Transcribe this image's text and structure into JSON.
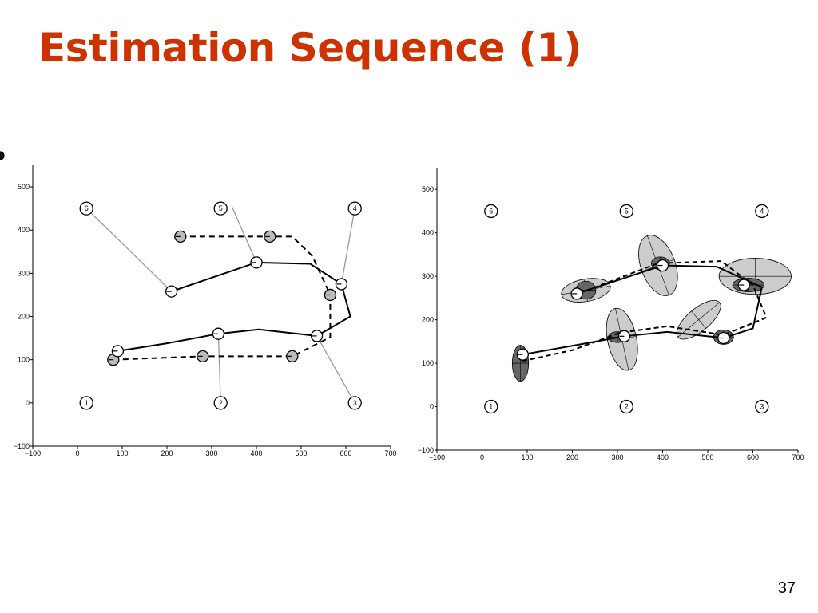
{
  "title": "Estimation Sequence (1)",
  "page_number": "37",
  "colors": {
    "title": "#cc3300",
    "pose": "#ffffff",
    "estimate": "#bbbbbb",
    "ellipse_light": "#cccccc",
    "ellipse_dark": "#666666"
  },
  "chart_data": [
    {
      "type": "scatter",
      "xlim": [
        -100,
        700
      ],
      "ylim": [
        -100,
        550
      ],
      "x_ticks": [
        -100,
        0,
        100,
        200,
        300,
        400,
        500,
        600,
        700
      ],
      "y_ticks": [
        -100,
        0,
        100,
        200,
        300,
        400,
        500
      ],
      "grid": false,
      "landmarks": [
        {
          "label": "1",
          "x": 20,
          "y": 0
        },
        {
          "label": "2",
          "x": 320,
          "y": 0
        },
        {
          "label": "3",
          "x": 620,
          "y": 0
        },
        {
          "label": "4",
          "x": 620,
          "y": 450
        },
        {
          "label": "5",
          "x": 320,
          "y": 450
        },
        {
          "label": "6",
          "x": 20,
          "y": 450
        }
      ],
      "landmark_estimates": [
        {
          "x": 12,
          "y": 462
        },
        {
          "x": 345,
          "y": 455
        },
        {
          "x": 620,
          "y": 455
        },
        {
          "x": 320,
          "y": 0
        },
        {
          "x": 620,
          "y": 0
        }
      ],
      "true_path": [
        [
          90,
          120
        ],
        [
          200,
          138
        ],
        [
          315,
          160
        ],
        [
          405,
          170
        ],
        [
          535,
          155
        ],
        [
          610,
          200
        ],
        [
          590,
          275
        ],
        [
          520,
          322
        ],
        [
          400,
          325
        ],
        [
          210,
          258
        ]
      ],
      "true_poses": [
        [
          90,
          120
        ],
        [
          315,
          160
        ],
        [
          535,
          155
        ],
        [
          590,
          275
        ],
        [
          400,
          325
        ],
        [
          210,
          258
        ]
      ],
      "odometry_path": [
        [
          80,
          100
        ],
        [
          280,
          108
        ],
        [
          480,
          108
        ],
        [
          565,
          152
        ],
        [
          565,
          250
        ],
        [
          525,
          340
        ],
        [
          480,
          385
        ],
        [
          430,
          385
        ],
        [
          230,
          385
        ]
      ],
      "odometry_poses": [
        [
          80,
          100
        ],
        [
          280,
          108
        ],
        [
          480,
          108
        ],
        [
          565,
          250
        ],
        [
          430,
          385
        ],
        [
          230,
          385
        ]
      ],
      "observations": [
        {
          "from": [
            315,
            160
          ],
          "to": [
            320,
            0
          ]
        },
        {
          "from": [
            535,
            155
          ],
          "to": [
            620,
            0
          ]
        },
        {
          "from": [
            590,
            275
          ],
          "to": [
            620,
            450
          ]
        },
        {
          "from": [
            400,
            325
          ],
          "to": [
            345,
            455
          ]
        },
        {
          "from": [
            210,
            258
          ],
          "to": [
            20,
            450
          ]
        }
      ]
    },
    {
      "type": "scatter",
      "xlim": [
        -100,
        700
      ],
      "ylim": [
        -100,
        550
      ],
      "x_ticks": [
        -100,
        0,
        100,
        200,
        300,
        400,
        500,
        600,
        700
      ],
      "y_ticks": [
        -100,
        0,
        100,
        200,
        300,
        400,
        500
      ],
      "grid": false,
      "landmarks": [
        {
          "label": "1",
          "x": 20,
          "y": 0
        },
        {
          "label": "2",
          "x": 320,
          "y": 0
        },
        {
          "label": "3",
          "x": 620,
          "y": 0
        },
        {
          "label": "4",
          "x": 620,
          "y": 450
        },
        {
          "label": "5",
          "x": 320,
          "y": 450
        },
        {
          "label": "6",
          "x": 20,
          "y": 450
        }
      ],
      "true_path": [
        [
          90,
          120
        ],
        [
          200,
          140
        ],
        [
          315,
          162
        ],
        [
          410,
          172
        ],
        [
          535,
          158
        ],
        [
          600,
          180
        ],
        [
          620,
          275
        ],
        [
          520,
          322
        ],
        [
          400,
          325
        ],
        [
          210,
          260
        ]
      ],
      "estimated_path": [
        [
          90,
          105
        ],
        [
          200,
          130
        ],
        [
          305,
          170
        ],
        [
          410,
          185
        ],
        [
          535,
          165
        ],
        [
          630,
          205
        ],
        [
          600,
          280
        ],
        [
          530,
          335
        ],
        [
          390,
          330
        ],
        [
          225,
          265
        ]
      ],
      "poses": [
        [
          90,
          120
        ],
        [
          315,
          162
        ],
        [
          535,
          158
        ],
        [
          580,
          280
        ],
        [
          400,
          325
        ],
        [
          210,
          260
        ]
      ],
      "uncertainty_ellipses": [
        {
          "cx": 85,
          "cy": 100,
          "rx": 18,
          "ry": 40,
          "angle_deg": 0,
          "shade": "dark"
        },
        {
          "cx": 230,
          "cy": 268,
          "rx": 55,
          "ry": 25,
          "angle_deg": -10,
          "shade": "light"
        },
        {
          "cx": 230,
          "cy": 268,
          "rx": 22,
          "ry": 20,
          "angle_deg": 0,
          "shade": "dark"
        },
        {
          "cx": 310,
          "cy": 155,
          "rx": 32,
          "ry": 70,
          "angle_deg": -12,
          "shade": "light"
        },
        {
          "cx": 300,
          "cy": 160,
          "rx": 20,
          "ry": 12,
          "angle_deg": 0,
          "shade": "dark"
        },
        {
          "cx": 390,
          "cy": 325,
          "rx": 38,
          "ry": 70,
          "angle_deg": -20,
          "shade": "light"
        },
        {
          "cx": 395,
          "cy": 330,
          "rx": 20,
          "ry": 14,
          "angle_deg": 0,
          "shade": "dark"
        },
        {
          "cx": 480,
          "cy": 200,
          "rx": 60,
          "ry": 25,
          "angle_deg": -40,
          "shade": "light"
        },
        {
          "cx": 535,
          "cy": 160,
          "rx": 22,
          "ry": 16,
          "angle_deg": 0,
          "shade": "dark"
        },
        {
          "cx": 605,
          "cy": 300,
          "rx": 80,
          "ry": 40,
          "angle_deg": 0,
          "shade": "light"
        },
        {
          "cx": 590,
          "cy": 280,
          "rx": 35,
          "ry": 15,
          "angle_deg": 0,
          "shade": "dark"
        }
      ]
    }
  ]
}
